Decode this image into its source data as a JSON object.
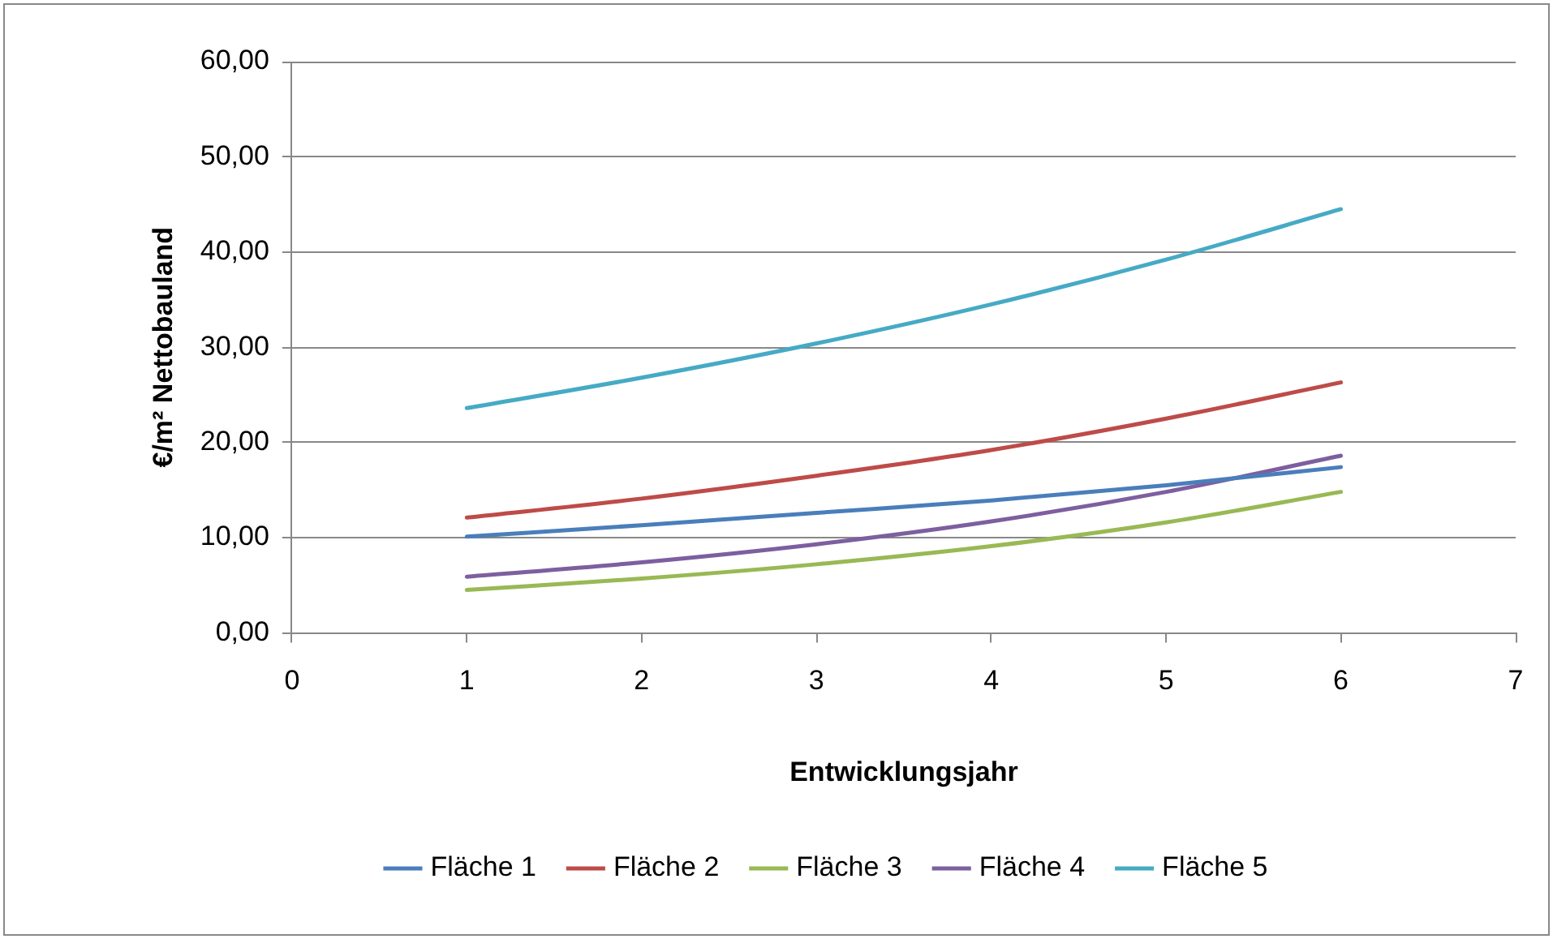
{
  "chart_data": {
    "type": "line",
    "xlabel": "Entwicklungsjahr",
    "ylabel": "€/m² Nettobauland",
    "x": [
      1,
      2,
      3,
      4,
      5,
      6
    ],
    "series": [
      {
        "name": "Fläche 1",
        "color": "#4a7ebb",
        "values": [
          10.1,
          11.3,
          12.6,
          13.9,
          15.5,
          17.4
        ]
      },
      {
        "name": "Fläche 2",
        "color": "#be4b48",
        "values": [
          12.1,
          14.1,
          16.5,
          19.2,
          22.5,
          26.3
        ]
      },
      {
        "name": "Fläche 3",
        "color": "#98b954",
        "values": [
          4.5,
          5.7,
          7.2,
          9.1,
          11.6,
          14.8
        ]
      },
      {
        "name": "Fläche 4",
        "color": "#7d5fa0",
        "values": [
          5.9,
          7.4,
          9.3,
          11.7,
          14.8,
          18.6
        ]
      },
      {
        "name": "Fläche 5",
        "color": "#46aac5",
        "values": [
          23.6,
          26.8,
          30.4,
          34.5,
          39.2,
          44.5
        ]
      }
    ],
    "xlim": [
      0,
      7
    ],
    "xticks": [
      0,
      1,
      2,
      3,
      4,
      5,
      6,
      7
    ],
    "ylim": [
      0,
      60
    ],
    "yticks": [
      {
        "value": 0,
        "label": "0,00"
      },
      {
        "value": 10,
        "label": "10,00"
      },
      {
        "value": 20,
        "label": "20,00"
      },
      {
        "value": 30,
        "label": "30,00"
      },
      {
        "value": 40,
        "label": "40,00"
      },
      {
        "value": 50,
        "label": "50,00"
      },
      {
        "value": 60,
        "label": "60,00"
      }
    ],
    "grid": "y",
    "legend": "bottom",
    "marker": "none",
    "line_style": "solid"
  }
}
